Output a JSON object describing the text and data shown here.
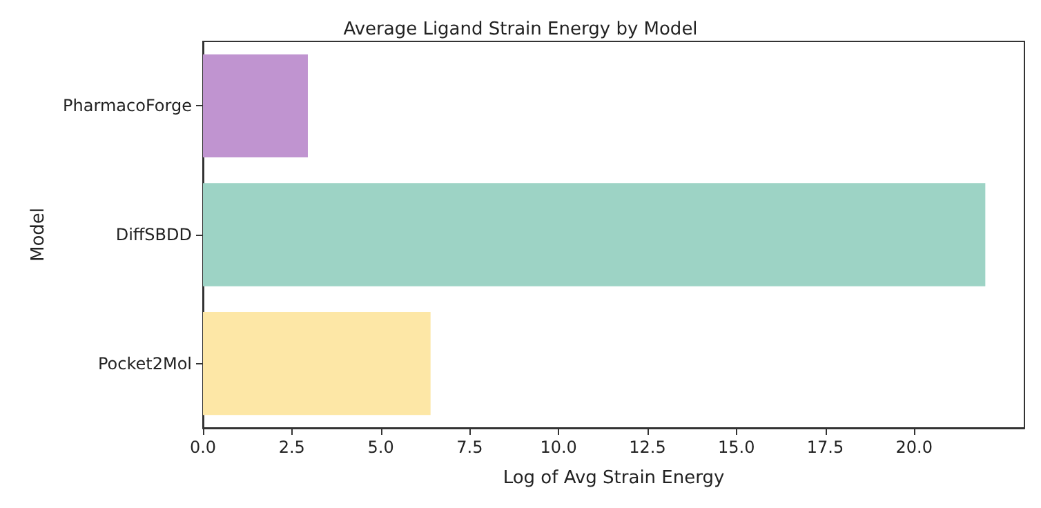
{
  "chart_data": {
    "type": "bar",
    "orientation": "horizontal",
    "title": "Average Ligand Strain Energy by Model",
    "xlabel": "Log of Avg Strain Energy",
    "ylabel": "Model",
    "categories": [
      "PharmacoForge",
      "DiffSBDD",
      "Pocket2Mol"
    ],
    "values": [
      2.95,
      22.0,
      6.4
    ],
    "colors": [
      "#c094d0",
      "#9dd3c5",
      "#fde7a6"
    ],
    "xlim": [
      0,
      23.1
    ],
    "xticks": [
      {
        "value": 0,
        "label": "0.0"
      },
      {
        "value": 2.5,
        "label": "2.5"
      },
      {
        "value": 5,
        "label": "5.0"
      },
      {
        "value": 7.5,
        "label": "7.5"
      },
      {
        "value": 10,
        "label": "10.0"
      },
      {
        "value": 12.5,
        "label": "12.5"
      },
      {
        "value": 15,
        "label": "15.0"
      },
      {
        "value": 17.5,
        "label": "17.5"
      },
      {
        "value": 20,
        "label": "20.0"
      }
    ],
    "grid": false
  }
}
